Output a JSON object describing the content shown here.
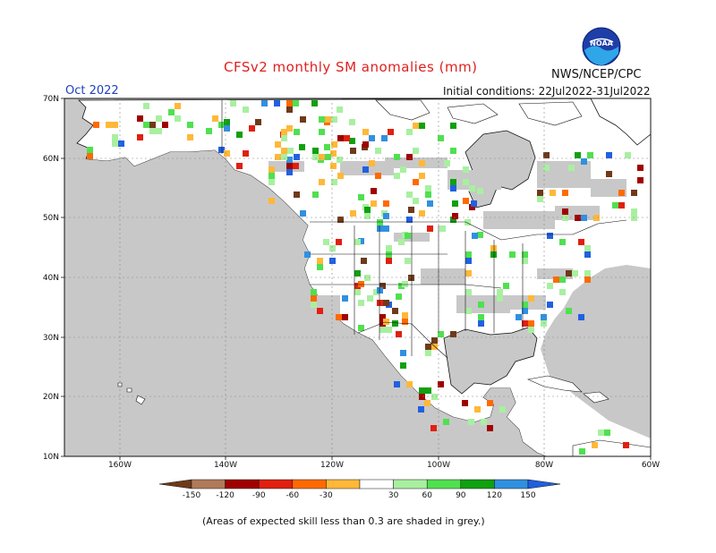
{
  "header": {
    "title": "CFSv2 monthly SM anomalies (mm)",
    "agency": "NWS/NCEP/CPC",
    "month": "Oct 2022",
    "initial_conditions": "Initial conditions: 22Jul2022-31Jul2022",
    "logo_text": "NOAA"
  },
  "map": {
    "lat_labels": [
      "70N",
      "60N",
      "50N",
      "40N",
      "30N",
      "20N",
      "10N"
    ],
    "lon_labels": [
      "160W",
      "140W",
      "120W",
      "100W",
      "80W",
      "60W"
    ],
    "ocean_color": "#c8c8c8",
    "land_color": "#ffffff"
  },
  "colorbar": {
    "labels": [
      "-150",
      "-120",
      "-90",
      "-60",
      "-30",
      "30",
      "60",
      "90",
      "120",
      "150"
    ],
    "colors": [
      "#6e3a1a",
      "#b07a5a",
      "#a00000",
      "#e02010",
      "#ff6a00",
      "#ffb838",
      "#ffffff",
      "#a8f0a0",
      "#50e050",
      "#10a010",
      "#3090e0",
      "#2060e0"
    ]
  },
  "footnote": "(Areas of expected skill less than 0.3 are shaded in grey.)"
}
